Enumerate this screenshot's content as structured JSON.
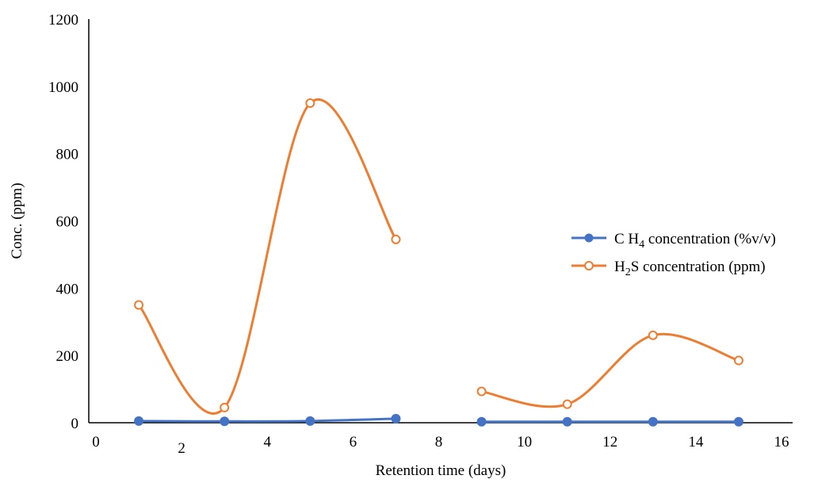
{
  "chart_data": {
    "type": "line",
    "title": "",
    "xlabel": "Retention time (days)",
    "ylabel": "Conc. (ppm)",
    "xlim": [
      0,
      16
    ],
    "ylim": [
      0,
      1200
    ],
    "xticks": [
      "0",
      "2",
      "4",
      "6",
      "8",
      "10",
      "12",
      "14",
      "16"
    ],
    "yticks": [
      "0",
      "200",
      "400",
      "600",
      "800",
      "1000",
      "1200"
    ],
    "grid": false,
    "legend_position": "right",
    "series": [
      {
        "name_parts": [
          "C H",
          "4",
          " concentration (%v/v)"
        ],
        "color": "#4472C4",
        "marker": "filled-circle",
        "segments": [
          [
            [
              1,
              5
            ],
            [
              3,
              4
            ],
            [
              5,
              5
            ],
            [
              7,
              12
            ]
          ],
          [
            [
              9,
              3
            ],
            [
              11,
              3
            ],
            [
              13,
              3
            ],
            [
              15,
              3
            ]
          ]
        ]
      },
      {
        "name_parts": [
          "H",
          "2",
          "S concentration (ppm)"
        ],
        "color": "#ED7D31",
        "marker": "open-circle",
        "segments": [
          [
            [
              1,
              350
            ],
            [
              3,
              45
            ],
            [
              5,
              950
            ],
            [
              7,
              545
            ]
          ],
          [
            [
              9,
              93
            ],
            [
              11,
              55
            ],
            [
              13,
              260
            ],
            [
              15,
              185
            ]
          ]
        ]
      }
    ]
  }
}
